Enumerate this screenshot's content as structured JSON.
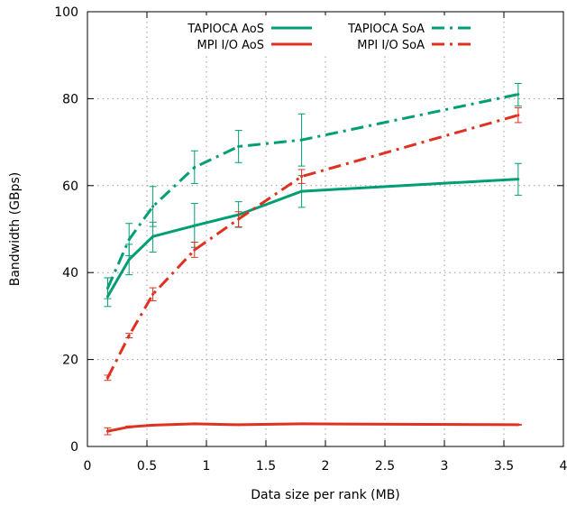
{
  "chart_data": {
    "type": "line",
    "title": "",
    "xlabel": "Data size per rank (MB)",
    "ylabel": "Bandwidth (GBps)",
    "xlim": [
      0,
      4
    ],
    "ylim": [
      0,
      100
    ],
    "xticks": [
      0,
      0.5,
      1,
      1.5,
      2,
      2.5,
      3,
      3.5,
      4
    ],
    "xtick_labels": [
      "0",
      "0.5",
      "1",
      "1.5",
      "2",
      "2.5",
      "3",
      "3.5",
      "4"
    ],
    "yticks": [
      0,
      20,
      40,
      60,
      80,
      100
    ],
    "ytick_labels": [
      "0",
      "20",
      "40",
      "60",
      "80",
      "100"
    ],
    "grid": true,
    "legend_position": "top",
    "series": [
      {
        "name": "TAPIOCA AoS",
        "color": "#009e73",
        "dash": "solid",
        "x": [
          0.17,
          0.35,
          0.55,
          0.9,
          1.27,
          1.8,
          3.62
        ],
        "y": [
          34.5,
          43,
          48.3,
          50.8,
          53.3,
          58.7,
          61.5
        ],
        "yerr_low": [
          32.2,
          39.5,
          44.7,
          45.8,
          50.4,
          55,
          57.8
        ],
        "yerr_high": [
          38.8,
          46.5,
          51.6,
          55.9,
          56.3,
          62.3,
          65.1
        ]
      },
      {
        "name": "TAPIOCA SoA",
        "color": "#009e73",
        "dash": "dashdot",
        "x": [
          0.17,
          0.35,
          0.55,
          0.9,
          1.27,
          1.8,
          3.62
        ],
        "y": [
          36.4,
          47.6,
          55.2,
          64.2,
          69,
          70.5,
          81
        ],
        "yerr_low": [
          34,
          43.9,
          50.6,
          60.5,
          65.3,
          64.5,
          78.3
        ],
        "yerr_high": [
          38.8,
          51.3,
          59.8,
          68,
          72.7,
          76.5,
          83.5
        ]
      },
      {
        "name": "MPI I/O AoS",
        "color": "#e03020",
        "dash": "solid",
        "x": [
          0.17,
          0.35,
          0.55,
          0.9,
          1.27,
          1.8,
          3.62
        ],
        "y": [
          3.5,
          4.5,
          4.9,
          5.2,
          5,
          5.2,
          5
        ],
        "yerr_low": [
          2.7,
          4.3,
          4.8,
          5.1,
          4.9,
          5.1,
          4.9
        ],
        "yerr_high": [
          4.3,
          4.7,
          5,
          5.3,
          5.1,
          5.3,
          5.1
        ]
      },
      {
        "name": "MPI I/O SoA",
        "color": "#e03020",
        "dash": "dashdot",
        "x": [
          0.17,
          0.35,
          0.55,
          0.9,
          1.27,
          1.8,
          3.62
        ],
        "y": [
          15.8,
          25.5,
          35,
          45.2,
          52.3,
          62.1,
          76.2
        ],
        "yerr_low": [
          15.2,
          25,
          33.5,
          43.5,
          50.5,
          60.5,
          74.5
        ],
        "yerr_high": [
          16.4,
          26,
          36.5,
          47,
          54,
          63.7,
          77.9
        ]
      }
    ]
  }
}
